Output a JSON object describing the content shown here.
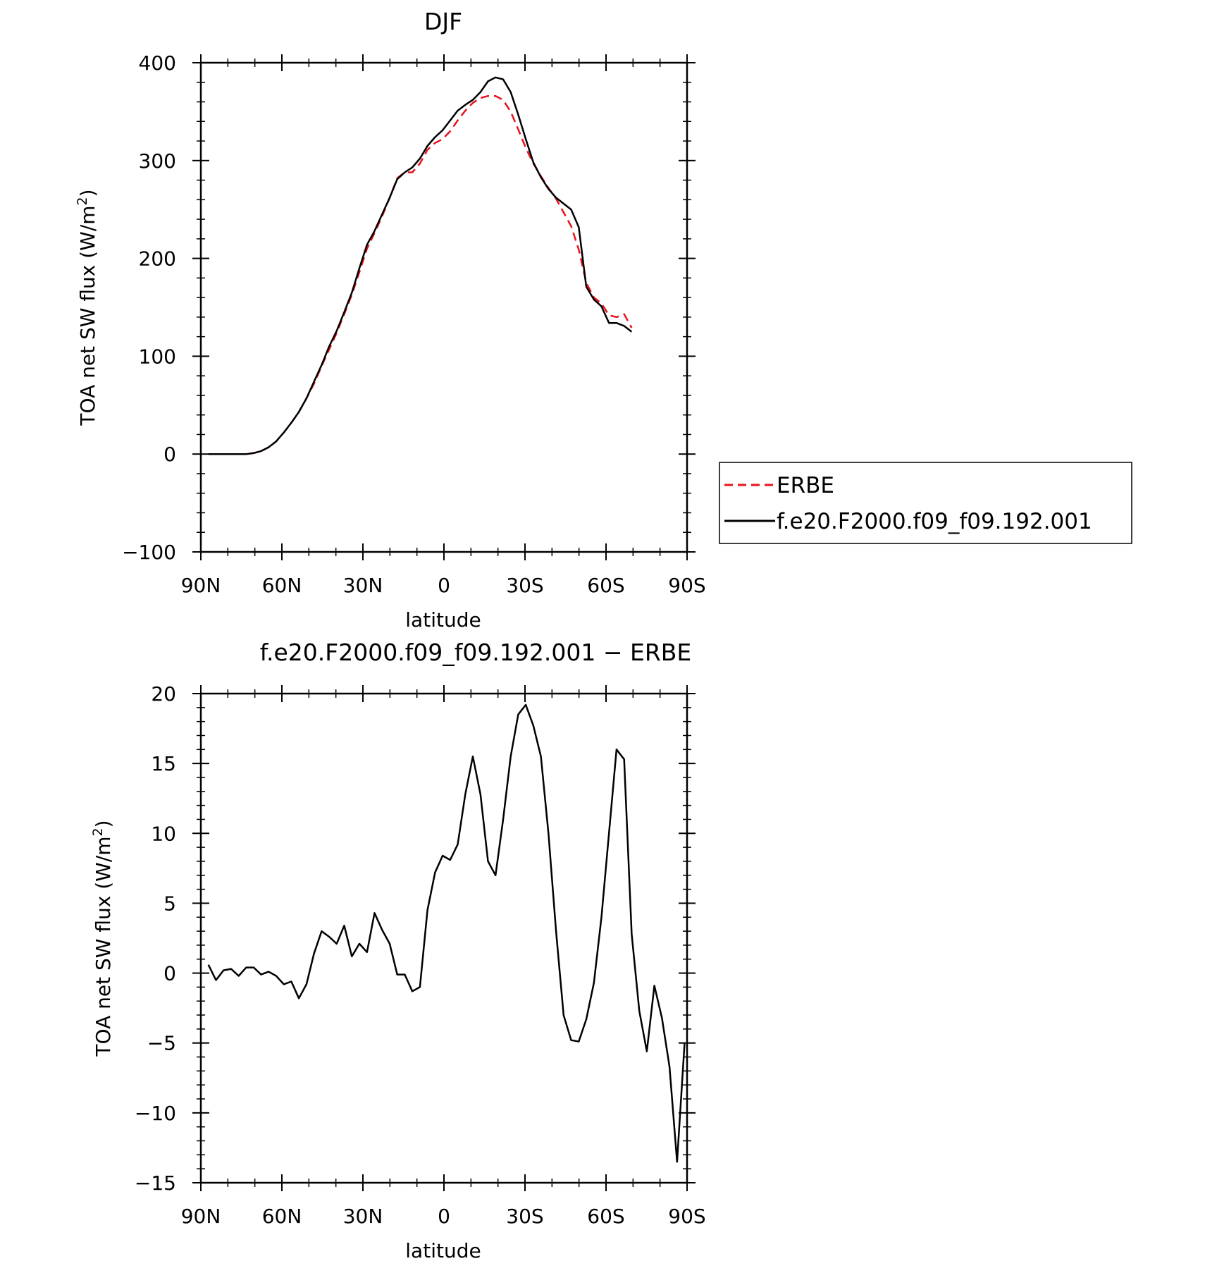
{
  "chart_data": [
    {
      "type": "line",
      "title": "DJF",
      "xlabel": "latitude",
      "ylabel": "TOA net SW flux (W/m",
      "ylabel_sup": "2",
      "ylabel_close": ")",
      "xlim": [
        90,
        -90
      ],
      "ylim": [
        -100,
        400
      ],
      "xticks": [
        {
          "value": 90,
          "label": "90N"
        },
        {
          "value": 60,
          "label": "60N"
        },
        {
          "value": 30,
          "label": "30N"
        },
        {
          "value": 0,
          "label": "0"
        },
        {
          "value": -30,
          "label": "30S"
        },
        {
          "value": -60,
          "label": "60S"
        },
        {
          "value": -90,
          "label": "90S"
        }
      ],
      "yticks": [
        {
          "value": 400,
          "label": "400"
        },
        {
          "value": 300,
          "label": "300"
        },
        {
          "value": 200,
          "label": "200"
        },
        {
          "value": 100,
          "label": "100"
        },
        {
          "value": 0,
          "label": "0"
        },
        {
          "value": -100,
          "label": "−100"
        }
      ],
      "legend": {
        "placement": "right"
      },
      "series": [
        {
          "name": "ERBE",
          "color": "#e8121a",
          "dash": "dashed",
          "points": [
            [
              87.2,
              0
            ],
            [
              84.4,
              0
            ],
            [
              81.6,
              0
            ],
            [
              78.8,
              0
            ],
            [
              76.0,
              0
            ],
            [
              73.2,
              0
            ],
            [
              70.4,
              1
            ],
            [
              67.7,
              3
            ],
            [
              64.9,
              7
            ],
            [
              62.1,
              13
            ],
            [
              59.3,
              22
            ],
            [
              56.5,
              32
            ],
            [
              53.7,
              43
            ],
            [
              50.9,
              57
            ],
            [
              48.1,
              72
            ],
            [
              45.3,
              90
            ],
            [
              42.5,
              107
            ],
            [
              39.7,
              124
            ],
            [
              36.9,
              143
            ],
            [
              34.1,
              163
            ],
            [
              31.3,
              186
            ],
            [
              28.5,
              210
            ],
            [
              25.7,
              226
            ],
            [
              22.9,
              243
            ],
            [
              20.1,
              262
            ],
            [
              17.3,
              282
            ],
            [
              14.5,
              288
            ],
            [
              11.7,
              288
            ],
            [
              8.9,
              297
            ],
            [
              6.1,
              311
            ],
            [
              3.3,
              318
            ],
            [
              0.5,
              322
            ],
            [
              -2.3,
              330
            ],
            [
              -5.1,
              341
            ],
            [
              -7.9,
              351
            ],
            [
              -10.7,
              359
            ],
            [
              -13.5,
              364
            ],
            [
              -16.3,
              366
            ],
            [
              -19.1,
              366
            ],
            [
              -21.9,
              362
            ],
            [
              -24.7,
              350
            ],
            [
              -27.5,
              332
            ],
            [
              -30.3,
              313
            ],
            [
              -33.1,
              297
            ],
            [
              -35.9,
              284
            ],
            [
              -38.7,
              272
            ],
            [
              -41.5,
              261
            ],
            [
              -44.3,
              247
            ],
            [
              -47.1,
              233
            ],
            [
              -49.9,
              209
            ],
            [
              -52.7,
              175
            ],
            [
              -55.5,
              160
            ],
            [
              -58.3,
              154
            ],
            [
              -61.1,
              142
            ],
            [
              -63.9,
              140
            ],
            [
              -66.7,
              143
            ],
            [
              -69.5,
              129
            ]
          ]
        },
        {
          "name": "f.e20.F2000.f09_f09.192.001",
          "color": "#000000",
          "dash": "solid",
          "points": [
            [
              87.2,
              0
            ],
            [
              84.4,
              0
            ],
            [
              81.6,
              0
            ],
            [
              78.8,
              0
            ],
            [
              76.0,
              0
            ],
            [
              73.2,
              0
            ],
            [
              70.4,
              1
            ],
            [
              67.7,
              3
            ],
            [
              64.9,
              7
            ],
            [
              62.1,
              13
            ],
            [
              59.3,
              22
            ],
            [
              56.5,
              32
            ],
            [
              53.7,
              43
            ],
            [
              50.9,
              57
            ],
            [
              48.1,
              74
            ],
            [
              45.3,
              91
            ],
            [
              42.5,
              110
            ],
            [
              39.7,
              126
            ],
            [
              36.9,
              145
            ],
            [
              34.1,
              165
            ],
            [
              31.3,
              190
            ],
            [
              28.5,
              214
            ],
            [
              25.7,
              228
            ],
            [
              22.9,
              245
            ],
            [
              20.1,
              262
            ],
            [
              17.3,
              281
            ],
            [
              14.5,
              288
            ],
            [
              11.7,
              293
            ],
            [
              8.9,
              302
            ],
            [
              6.1,
              315
            ],
            [
              3.3,
              324
            ],
            [
              0.5,
              331
            ],
            [
              -2.3,
              341
            ],
            [
              -5.1,
              351
            ],
            [
              -7.9,
              357
            ],
            [
              -10.7,
              362
            ],
            [
              -13.5,
              370
            ],
            [
              -16.3,
              381
            ],
            [
              -19.1,
              385
            ],
            [
              -21.9,
              383
            ],
            [
              -24.7,
              370
            ],
            [
              -27.5,
              347
            ],
            [
              -30.3,
              322
            ],
            [
              -33.1,
              298
            ],
            [
              -35.9,
              283
            ],
            [
              -38.7,
              271
            ],
            [
              -41.5,
              262
            ],
            [
              -44.3,
              256
            ],
            [
              -47.1,
              250
            ],
            [
              -49.9,
              232
            ],
            [
              -52.7,
              171
            ],
            [
              -55.5,
              158
            ],
            [
              -58.3,
              151
            ],
            [
              -61.1,
              134
            ],
            [
              -63.9,
              134
            ],
            [
              -66.7,
              131
            ],
            [
              -69.5,
              125
            ]
          ]
        }
      ]
    },
    {
      "type": "line",
      "title": "f.e20.F2000.f09_f09.192.001 − ERBE",
      "xlabel": "latitude",
      "ylabel": "TOA net SW flux (W/m",
      "ylabel_sup": "2",
      "ylabel_close": ")",
      "xlim": [
        90,
        -90
      ],
      "ylim": [
        -15,
        20
      ],
      "xticks": [
        {
          "value": 90,
          "label": "90N"
        },
        {
          "value": 60,
          "label": "60N"
        },
        {
          "value": 30,
          "label": "30N"
        },
        {
          "value": 0,
          "label": "0"
        },
        {
          "value": -30,
          "label": "30S"
        },
        {
          "value": -60,
          "label": "60S"
        },
        {
          "value": -90,
          "label": "90S"
        }
      ],
      "yticks": [
        {
          "value": 20,
          "label": "20"
        },
        {
          "value": 15,
          "label": "15"
        },
        {
          "value": 10,
          "label": "10"
        },
        {
          "value": 5,
          "label": "5"
        },
        {
          "value": 0,
          "label": "0"
        },
        {
          "value": -5,
          "label": "−5"
        },
        {
          "value": -10,
          "label": "−10"
        },
        {
          "value": -15,
          "label": "−15"
        }
      ],
      "series": [
        {
          "color": "#000000",
          "dash": "solid",
          "points": [
            [
              87.2,
              0.6
            ],
            [
              84.4,
              -0.5
            ],
            [
              81.6,
              0.2
            ],
            [
              78.8,
              0.3
            ],
            [
              76.0,
              -0.2
            ],
            [
              73.2,
              0.4
            ],
            [
              70.4,
              0.4
            ],
            [
              67.7,
              -0.1
            ],
            [
              64.9,
              0.1
            ],
            [
              62.1,
              -0.2
            ],
            [
              59.3,
              -0.8
            ],
            [
              56.5,
              -0.6
            ],
            [
              53.7,
              -1.8
            ],
            [
              50.9,
              -0.8
            ],
            [
              48.1,
              1.4
            ],
            [
              45.3,
              3.0
            ],
            [
              42.5,
              2.6
            ],
            [
              39.7,
              2.1
            ],
            [
              36.9,
              3.4
            ],
            [
              34.1,
              1.2
            ],
            [
              31.3,
              2.1
            ],
            [
              28.5,
              1.5
            ],
            [
              25.7,
              4.3
            ],
            [
              22.9,
              3.1
            ],
            [
              20.1,
              2.1
            ],
            [
              17.3,
              -0.1
            ],
            [
              14.5,
              -0.1
            ],
            [
              11.7,
              -1.3
            ],
            [
              8.9,
              -1.0
            ],
            [
              6.1,
              4.5
            ],
            [
              3.3,
              7.2
            ],
            [
              0.5,
              8.4
            ],
            [
              -2.3,
              8.1
            ],
            [
              -5.1,
              9.2
            ],
            [
              -7.9,
              12.8
            ],
            [
              -10.7,
              15.5
            ],
            [
              -13.5,
              12.8
            ],
            [
              -16.3,
              8.0
            ],
            [
              -19.1,
              7.0
            ],
            [
              -21.9,
              11.0
            ],
            [
              -24.7,
              15.5
            ],
            [
              -27.5,
              18.5
            ],
            [
              -30.3,
              19.2
            ],
            [
              -33.1,
              17.7
            ],
            [
              -35.9,
              15.5
            ],
            [
              -38.7,
              10.0
            ],
            [
              -41.5,
              3.0
            ],
            [
              -44.3,
              -3.0
            ],
            [
              -47.1,
              -4.8
            ],
            [
              -49.9,
              -4.9
            ],
            [
              -52.7,
              -3.3
            ],
            [
              -55.5,
              -0.7
            ],
            [
              -58.3,
              4.0
            ],
            [
              -61.1,
              10.0
            ],
            [
              -63.9,
              16.0
            ],
            [
              -66.7,
              15.3
            ],
            [
              -69.5,
              2.8
            ],
            [
              -72.3,
              -2.7
            ],
            [
              -75.1,
              -5.6
            ],
            [
              -77.9,
              -0.9
            ],
            [
              -80.7,
              -3.2
            ],
            [
              -83.5,
              -6.7
            ],
            [
              -86.3,
              -13.5
            ],
            [
              -89.1,
              -5.0
            ]
          ]
        }
      ]
    }
  ]
}
